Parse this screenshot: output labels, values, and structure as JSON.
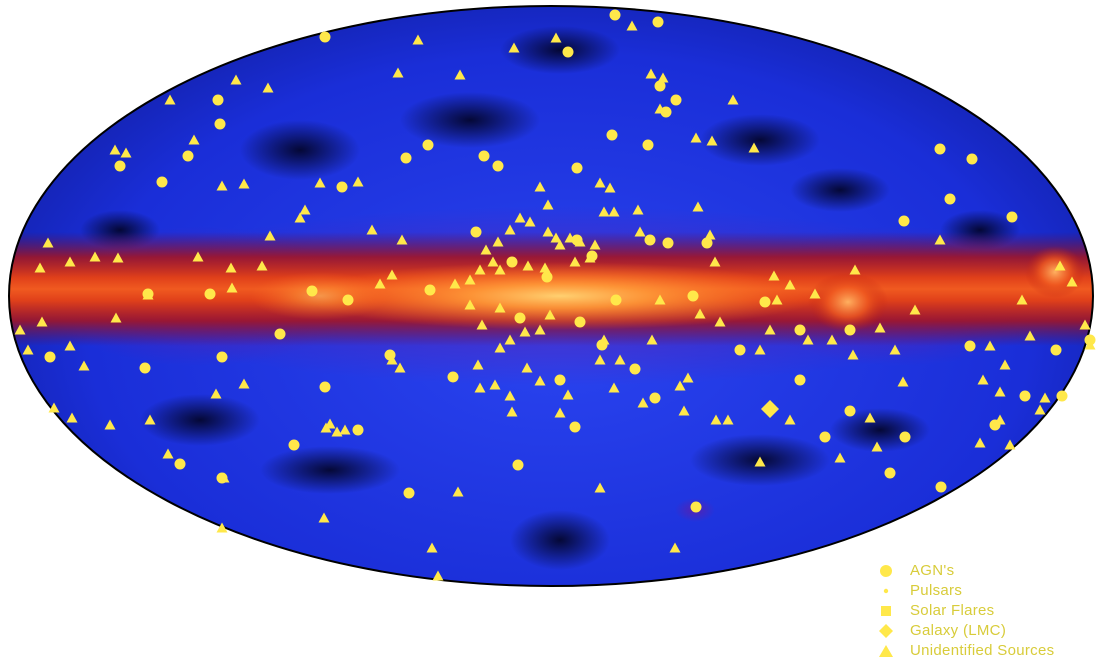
{
  "colors": {
    "background": "#ffffff",
    "sky_deep": "#0a1470",
    "sky_blue": "#1a32e8",
    "plane_red": "#d83010",
    "plane_core": "#ff9a38",
    "marker_yellow": "#ffe84a",
    "legend_text": "#d8cc3a"
  },
  "legend": {
    "items": [
      {
        "label": "AGN's",
        "marker": "circle-icon"
      },
      {
        "label": "Pulsars",
        "marker": "dot-icon"
      },
      {
        "label": "Solar Flares",
        "marker": "square-icon"
      },
      {
        "label": "Galaxy (LMC)",
        "marker": "diamond-icon"
      },
      {
        "label": "Unidentified Sources",
        "marker": "triangle-icon"
      }
    ]
  }
}
